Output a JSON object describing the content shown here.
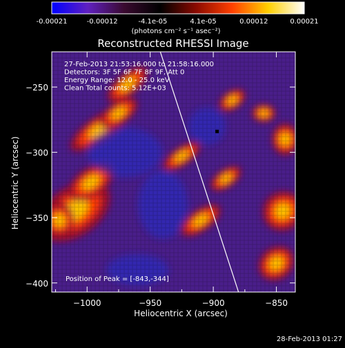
{
  "colorbar": {
    "ticks": [
      "-0.00021",
      "-0.00012",
      "-4.1e-05",
      "4.1e-05",
      "0.00012",
      "0.00021"
    ],
    "unit": "(photons cm⁻² s⁻¹ asec⁻²)",
    "range": [
      -0.00021,
      0.00021
    ],
    "colors": [
      "#0000ff",
      "#6020c0",
      "#3a0a30",
      "#000000",
      "#8a0a00",
      "#ff4000",
      "#ffd000",
      "#ffffff"
    ]
  },
  "chart_data": {
    "type": "heatmap",
    "title": "Reconstructed RHESSI Image",
    "xlabel": "Heliocentric X (arcsec)",
    "ylabel": "Heliocentric Y (arcsec)",
    "xlim": [
      -1028,
      -835
    ],
    "ylim": [
      -407,
      -223
    ],
    "x_ticks": [
      -1000,
      -950,
      -900,
      -850
    ],
    "y_ticks": [
      -250,
      -300,
      -350,
      -400
    ],
    "x_tick_labels": [
      "−1000",
      "−950",
      "−900",
      "−850"
    ],
    "y_tick_labels": [
      "−250",
      "−300",
      "−350",
      "−400"
    ],
    "annotations": [
      "27-Feb-2013 21:53:16.000 to 21:58:16.000",
      "Detectors: 3F 5F 6F 7F 8F 9F, Att 0",
      "Energy Range: 12.0 - 25.0 keV",
      "Clean    Total counts: 5.12E+03"
    ],
    "peak_label": "Position of Peak = [-843,-344]",
    "peak": [
      -843,
      -344
    ],
    "limb": [
      [
        -942,
        -223
      ],
      [
        -880,
        -407
      ]
    ],
    "background_color": "#4a1e8a",
    "bright_regions": [
      {
        "x": -1010,
        "y": -345,
        "w": 55,
        "h": 28,
        "angle": -35
      },
      {
        "x": -997,
        "y": -323,
        "w": 35,
        "h": 16,
        "angle": -35
      },
      {
        "x": -1022,
        "y": -352,
        "w": 20,
        "h": 20,
        "angle": 0
      },
      {
        "x": -990,
        "y": -282,
        "w": 48,
        "h": 14,
        "angle": -35
      },
      {
        "x": -975,
        "y": -270,
        "w": 30,
        "h": 12,
        "angle": -35
      },
      {
        "x": -968,
        "y": -248,
        "w": 34,
        "h": 12,
        "angle": -40
      },
      {
        "x": -925,
        "y": -303,
        "w": 30,
        "h": 10,
        "angle": -35
      },
      {
        "x": -910,
        "y": -352,
        "w": 32,
        "h": 12,
        "angle": -35
      },
      {
        "x": -890,
        "y": -320,
        "w": 24,
        "h": 10,
        "angle": -35
      },
      {
        "x": -885,
        "y": -260,
        "w": 20,
        "h": 10,
        "angle": -35
      },
      {
        "x": -845,
        "y": -345,
        "w": 28,
        "h": 22,
        "angle": -40
      },
      {
        "x": -850,
        "y": -385,
        "w": 26,
        "h": 18,
        "angle": -40
      },
      {
        "x": -843,
        "y": -290,
        "w": 18,
        "h": 18,
        "angle": 0
      },
      {
        "x": -860,
        "y": -270,
        "w": 16,
        "h": 10,
        "angle": 0
      }
    ]
  },
  "timestamp": "28-Feb-2013 01:27"
}
